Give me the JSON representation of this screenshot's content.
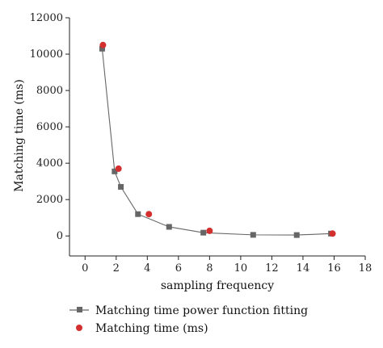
{
  "chart_data": {
    "type": "scatter",
    "xlabel": "sampling frequency",
    "ylabel": "Matching time (ms)",
    "xlim": [
      -1,
      18
    ],
    "ylim": [
      -1100,
      12000
    ],
    "x_ticks": [
      0,
      2,
      4,
      6,
      8,
      10,
      12,
      14,
      16,
      18
    ],
    "y_ticks": [
      0,
      2000,
      4000,
      6000,
      8000,
      10000,
      12000
    ],
    "grid": false,
    "legend_position": "bottom",
    "series": [
      {
        "name": "Matching time power function fitting",
        "style": "line-with-square-markers",
        "color": "#666666",
        "x": [
          1.1,
          1.9,
          2.3,
          3.4,
          5.4,
          7.6,
          10.8,
          13.6,
          15.8
        ],
        "y": [
          10300,
          3550,
          2700,
          1200,
          500,
          180,
          60,
          50,
          130
        ]
      },
      {
        "name": "Matching time (ms)",
        "style": "circle-markers",
        "color": "#d32f2f",
        "x": [
          1.15,
          2.15,
          4.1,
          8.0,
          15.9
        ],
        "y": [
          10500,
          3700,
          1200,
          280,
          130
        ]
      }
    ]
  }
}
